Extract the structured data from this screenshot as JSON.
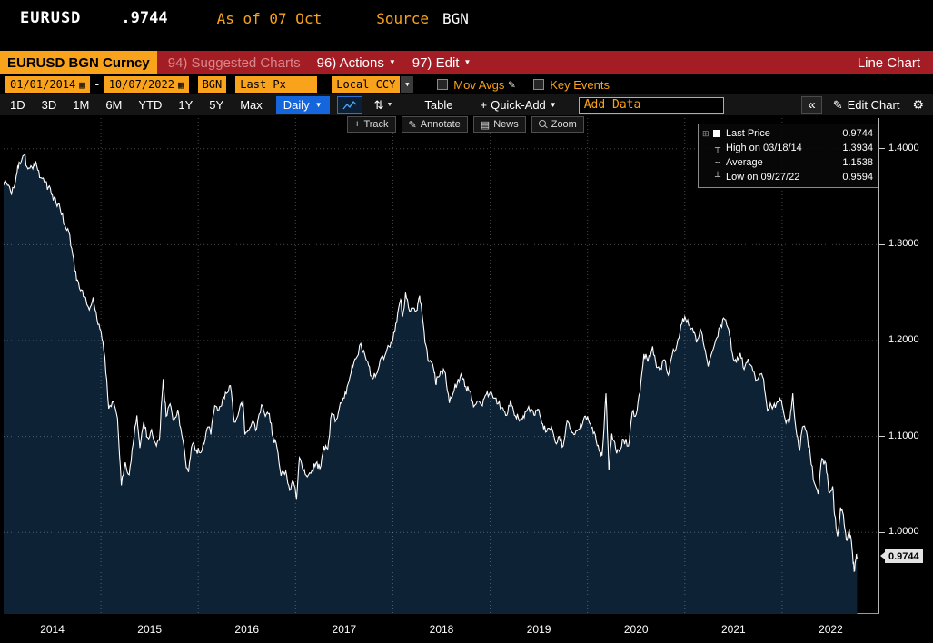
{
  "ticker_bar": {
    "symbol": "EURUSD",
    "price": ".9744",
    "as_of": "As of 07 Oct",
    "source_label": "Source",
    "source_value": "BGN"
  },
  "menu_bar": {
    "security": "EURUSD BGN Curncy",
    "suggested": "94) Suggested Charts",
    "actions": "96) Actions",
    "edit": "97) Edit",
    "chart_type": "Line Chart"
  },
  "settings_bar": {
    "date_from": "01/01/2014",
    "range_sep": "-",
    "date_to": "10/07/2022",
    "source": "BGN",
    "field": "Last Px",
    "currency": "Local CCY",
    "mov_avgs": "Mov Avgs",
    "key_events": "Key Events"
  },
  "toolbar": {
    "periods": [
      "1D",
      "3D",
      "1M",
      "6M",
      "YTD",
      "1Y",
      "5Y",
      "Max"
    ],
    "frequency": "Daily",
    "table": "Table",
    "quick_add": "Quick-Add",
    "add_data_placeholder": "Add Data",
    "edit_chart": "Edit Chart"
  },
  "chart_tools": [
    "Track",
    "Annotate",
    "News",
    "Zoom"
  ],
  "legend": {
    "rows": [
      {
        "label": "Last Price",
        "value": "0.9744"
      },
      {
        "label": "High on 03/18/14",
        "value": "1.3934"
      },
      {
        "label": "Average",
        "value": "1.1538"
      },
      {
        "label": "Low on 09/27/22",
        "value": "0.9594"
      }
    ]
  },
  "axis": {
    "y_ticks": [
      "1.4000",
      "1.3000",
      "1.2000",
      "1.1000",
      "1.0000"
    ],
    "last_price_label": "0.9744",
    "x_labels": [
      "2014",
      "2015",
      "2016",
      "2017",
      "2018",
      "2019",
      "2020",
      "2021",
      "2022"
    ]
  },
  "icons": {
    "calendar": "▦",
    "caret_down": "▼",
    "pencil": "✎",
    "gear": "⚙",
    "collapse_left": "«",
    "plus": "+",
    "news": "▤",
    "sort": "⇅",
    "legend_toggle": "⊞",
    "high_marker": "┬",
    "avg_marker": "╌",
    "low_marker": "┴"
  },
  "colors": {
    "amber": "#f9a21b",
    "menu_red": "#a51d24",
    "accent_blue": "#1565dd",
    "fill_navy": "#0e2236",
    "line_white": "#ffffff",
    "badge_bg": "#e3e3e3"
  },
  "chart_data": {
    "type": "line",
    "title": "EURUSD BGN Curncy — Last Px, Daily, 01/01/2014 - 10/07/2022",
    "x_unit": "decimal_year",
    "xlim": [
      2014,
      2023
    ],
    "ylim": [
      0.915,
      1.432
    ],
    "y_gridlines": [
      1.0,
      1.1,
      1.2,
      1.3,
      1.4
    ],
    "x_gridlines": [
      2015,
      2016,
      2017,
      2018,
      2019,
      2020,
      2021,
      2022
    ],
    "grid": true,
    "legend_position": "top-right",
    "line_color": "#ffffff",
    "fill_color": "#0e2236",
    "last": 0.9744,
    "average": 1.1538,
    "high": {
      "date": "03/18/14",
      "value": 1.3934
    },
    "low": {
      "date": "09/27/22",
      "value": 0.9594
    },
    "series": [
      {
        "name": "EURUSD Last Px",
        "points": [
          [
            2014.0,
            1.366
          ],
          [
            2014.04,
            1.362
          ],
          [
            2014.08,
            1.352
          ],
          [
            2014.13,
            1.372
          ],
          [
            2014.16,
            1.386
          ],
          [
            2014.21,
            1.3934
          ],
          [
            2014.25,
            1.379
          ],
          [
            2014.29,
            1.381
          ],
          [
            2014.33,
            1.387
          ],
          [
            2014.37,
            1.37
          ],
          [
            2014.42,
            1.365
          ],
          [
            2014.46,
            1.36
          ],
          [
            2014.5,
            1.352
          ],
          [
            2014.54,
            1.343
          ],
          [
            2014.58,
            1.338
          ],
          [
            2014.63,
            1.32
          ],
          [
            2014.67,
            1.313
          ],
          [
            2014.71,
            1.29
          ],
          [
            2014.75,
            1.263
          ],
          [
            2014.79,
            1.252
          ],
          [
            2014.83,
            1.246
          ],
          [
            2014.88,
            1.232
          ],
          [
            2014.92,
            1.245
          ],
          [
            2014.96,
            1.222
          ],
          [
            2015.0,
            1.21
          ],
          [
            2015.04,
            1.183
          ],
          [
            2015.08,
            1.129
          ],
          [
            2015.13,
            1.136
          ],
          [
            2015.17,
            1.119
          ],
          [
            2015.21,
            1.049
          ],
          [
            2015.25,
            1.073
          ],
          [
            2015.29,
            1.06
          ],
          [
            2015.33,
            1.092
          ],
          [
            2015.37,
            1.122
          ],
          [
            2015.4,
            1.088
          ],
          [
            2015.44,
            1.115
          ],
          [
            2015.48,
            1.099
          ],
          [
            2015.52,
            1.107
          ],
          [
            2015.56,
            1.093
          ],
          [
            2015.6,
            1.096
          ],
          [
            2015.64,
            1.16
          ],
          [
            2015.67,
            1.121
          ],
          [
            2015.71,
            1.134
          ],
          [
            2015.75,
            1.116
          ],
          [
            2015.79,
            1.128
          ],
          [
            2015.83,
            1.102
          ],
          [
            2015.87,
            1.074
          ],
          [
            2015.9,
            1.063
          ],
          [
            2015.94,
            1.092
          ],
          [
            2015.98,
            1.086
          ],
          [
            2016.02,
            1.083
          ],
          [
            2016.06,
            1.092
          ],
          [
            2016.1,
            1.11
          ],
          [
            2016.13,
            1.102
          ],
          [
            2016.17,
            1.132
          ],
          [
            2016.21,
            1.127
          ],
          [
            2016.25,
            1.139
          ],
          [
            2016.29,
            1.145
          ],
          [
            2016.33,
            1.153
          ],
          [
            2016.37,
            1.115
          ],
          [
            2016.42,
            1.127
          ],
          [
            2016.46,
            1.138
          ],
          [
            2016.48,
            1.102
          ],
          [
            2016.52,
            1.106
          ],
          [
            2016.56,
            1.116
          ],
          [
            2016.6,
            1.108
          ],
          [
            2016.65,
            1.133
          ],
          [
            2016.69,
            1.121
          ],
          [
            2016.73,
            1.124
          ],
          [
            2016.77,
            1.099
          ],
          [
            2016.81,
            1.088
          ],
          [
            2016.85,
            1.059
          ],
          [
            2016.9,
            1.064
          ],
          [
            2016.94,
            1.044
          ],
          [
            2016.98,
            1.052
          ],
          [
            2017.01,
            1.035
          ],
          [
            2017.04,
            1.078
          ],
          [
            2017.08,
            1.064
          ],
          [
            2017.12,
            1.058
          ],
          [
            2017.17,
            1.065
          ],
          [
            2017.21,
            1.072
          ],
          [
            2017.25,
            1.066
          ],
          [
            2017.29,
            1.09
          ],
          [
            2017.33,
            1.087
          ],
          [
            2017.37,
            1.124
          ],
          [
            2017.42,
            1.118
          ],
          [
            2017.46,
            1.135
          ],
          [
            2017.5,
            1.14
          ],
          [
            2017.54,
            1.155
          ],
          [
            2017.58,
            1.175
          ],
          [
            2017.62,
            1.181
          ],
          [
            2017.67,
            1.197
          ],
          [
            2017.71,
            1.186
          ],
          [
            2017.75,
            1.174
          ],
          [
            2017.79,
            1.16
          ],
          [
            2017.83,
            1.165
          ],
          [
            2017.87,
            1.18
          ],
          [
            2017.92,
            1.185
          ],
          [
            2017.96,
            1.194
          ],
          [
            2018.0,
            1.201
          ],
          [
            2018.04,
            1.219
          ],
          [
            2018.08,
            1.243
          ],
          [
            2018.1,
            1.225
          ],
          [
            2018.13,
            1.25
          ],
          [
            2018.17,
            1.231
          ],
          [
            2018.21,
            1.234
          ],
          [
            2018.25,
            1.232
          ],
          [
            2018.27,
            1.245
          ],
          [
            2018.29,
            1.238
          ],
          [
            2018.33,
            1.198
          ],
          [
            2018.37,
            1.178
          ],
          [
            2018.42,
            1.17
          ],
          [
            2018.44,
            1.155
          ],
          [
            2018.46,
            1.162
          ],
          [
            2018.5,
            1.168
          ],
          [
            2018.54,
            1.166
          ],
          [
            2018.58,
            1.135
          ],
          [
            2018.63,
            1.148
          ],
          [
            2018.67,
            1.16
          ],
          [
            2018.71,
            1.162
          ],
          [
            2018.75,
            1.152
          ],
          [
            2018.79,
            1.147
          ],
          [
            2018.83,
            1.131
          ],
          [
            2018.88,
            1.137
          ],
          [
            2018.92,
            1.132
          ],
          [
            2018.96,
            1.144
          ],
          [
            2019.0,
            1.146
          ],
          [
            2019.04,
            1.14
          ],
          [
            2019.08,
            1.134
          ],
          [
            2019.13,
            1.13
          ],
          [
            2019.17,
            1.122
          ],
          [
            2019.21,
            1.138
          ],
          [
            2019.25,
            1.122
          ],
          [
            2019.29,
            1.119
          ],
          [
            2019.33,
            1.118
          ],
          [
            2019.37,
            1.126
          ],
          [
            2019.42,
            1.129
          ],
          [
            2019.46,
            1.122
          ],
          [
            2019.5,
            1.128
          ],
          [
            2019.54,
            1.113
          ],
          [
            2019.58,
            1.105
          ],
          [
            2019.63,
            1.11
          ],
          [
            2019.67,
            1.094
          ],
          [
            2019.71,
            1.1
          ],
          [
            2019.75,
            1.09
          ],
          [
            2019.79,
            1.116
          ],
          [
            2019.83,
            1.107
          ],
          [
            2019.87,
            1.102
          ],
          [
            2019.92,
            1.108
          ],
          [
            2019.96,
            1.118
          ],
          [
            2020.0,
            1.121
          ],
          [
            2020.04,
            1.109
          ],
          [
            2020.08,
            1.102
          ],
          [
            2020.12,
            1.085
          ],
          [
            2020.15,
            1.08
          ],
          [
            2020.19,
            1.145
          ],
          [
            2020.22,
            1.065
          ],
          [
            2020.25,
            1.103
          ],
          [
            2020.29,
            1.087
          ],
          [
            2020.33,
            1.084
          ],
          [
            2020.37,
            1.097
          ],
          [
            2020.42,
            1.09
          ],
          [
            2020.46,
            1.125
          ],
          [
            2020.5,
            1.123
          ],
          [
            2020.54,
            1.146
          ],
          [
            2020.58,
            1.186
          ],
          [
            2020.62,
            1.178
          ],
          [
            2020.67,
            1.194
          ],
          [
            2020.71,
            1.172
          ],
          [
            2020.75,
            1.171
          ],
          [
            2020.79,
            1.18
          ],
          [
            2020.83,
            1.164
          ],
          [
            2020.87,
            1.185
          ],
          [
            2020.92,
            1.196
          ],
          [
            2020.96,
            1.216
          ],
          [
            2021.0,
            1.225
          ],
          [
            2021.04,
            1.216
          ],
          [
            2021.08,
            1.213
          ],
          [
            2021.12,
            1.198
          ],
          [
            2021.16,
            1.212
          ],
          [
            2021.2,
            1.193
          ],
          [
            2021.24,
            1.173
          ],
          [
            2021.28,
            1.188
          ],
          [
            2021.33,
            1.203
          ],
          [
            2021.37,
            1.216
          ],
          [
            2021.41,
            1.222
          ],
          [
            2021.45,
            1.212
          ],
          [
            2021.49,
            1.186
          ],
          [
            2021.53,
            1.177
          ],
          [
            2021.57,
            1.187
          ],
          [
            2021.61,
            1.17
          ],
          [
            2021.65,
            1.181
          ],
          [
            2021.69,
            1.173
          ],
          [
            2021.73,
            1.158
          ],
          [
            2021.77,
            1.165
          ],
          [
            2021.81,
            1.16
          ],
          [
            2021.85,
            1.127
          ],
          [
            2021.89,
            1.132
          ],
          [
            2021.93,
            1.13
          ],
          [
            2021.97,
            1.137
          ],
          [
            2022.0,
            1.133
          ],
          [
            2022.04,
            1.114
          ],
          [
            2022.08,
            1.118
          ],
          [
            2022.11,
            1.145
          ],
          [
            2022.14,
            1.11
          ],
          [
            2022.18,
            1.085
          ],
          [
            2022.21,
            1.11
          ],
          [
            2022.25,
            1.105
          ],
          [
            2022.29,
            1.08
          ],
          [
            2022.33,
            1.052
          ],
          [
            2022.37,
            1.04
          ],
          [
            2022.41,
            1.077
          ],
          [
            2022.45,
            1.072
          ],
          [
            2022.48,
            1.042
          ],
          [
            2022.52,
            1.048
          ],
          [
            2022.54,
            1.018
          ],
          [
            2022.57,
            0.996
          ],
          [
            2022.6,
            1.026
          ],
          [
            2022.63,
            1.018
          ],
          [
            2022.66,
            0.992
          ],
          [
            2022.69,
            1.003
          ],
          [
            2022.72,
            0.982
          ],
          [
            2022.74,
            0.9594
          ],
          [
            2022.76,
            0.973
          ],
          [
            2022.77,
            0.9744
          ]
        ]
      }
    ]
  }
}
